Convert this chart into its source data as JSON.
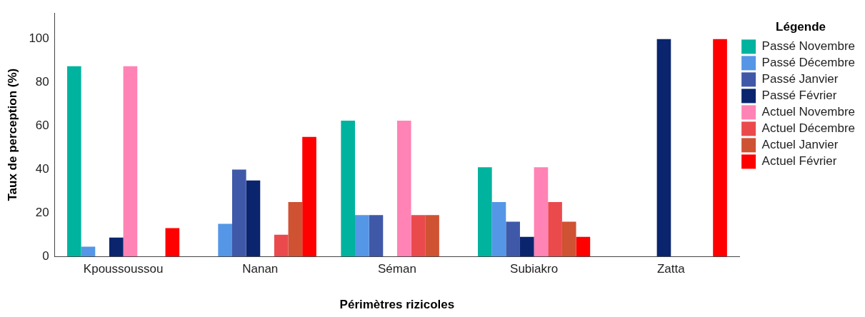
{
  "chart_data": {
    "type": "bar",
    "xlabel": "Périmètres rizicoles",
    "ylabel": "Taux de perception (%)",
    "legend_title": "Légende",
    "legend": "right",
    "grid": false,
    "categories": [
      "Kpoussoussou",
      "Nanan",
      "Séman",
      "Subiakro",
      "Zatta"
    ],
    "ylim": [
      0,
      112
    ],
    "yticks": [
      0,
      20,
      40,
      60,
      80,
      100
    ],
    "series": [
      {
        "name": "Passé Novembre",
        "color": "#00b39f",
        "values": [
          87.5,
          null,
          62.5,
          41,
          null
        ]
      },
      {
        "name": "Passé Décembre",
        "color": "#5596e6",
        "values": [
          4.5,
          15,
          19,
          25,
          null
        ]
      },
      {
        "name": "Passé Janvier",
        "color": "#4058a8",
        "values": [
          null,
          40,
          19,
          16,
          null
        ]
      },
      {
        "name": "Passé Février",
        "color": "#0a256e",
        "values": [
          8.7,
          35,
          null,
          9,
          100
        ]
      },
      {
        "name": "Actuel Novembre",
        "color": "#ff83b5",
        "values": [
          87.5,
          null,
          62.5,
          41,
          null
        ]
      },
      {
        "name": "Actuel Décembre",
        "color": "#eb4a4d",
        "values": [
          null,
          10,
          19,
          25,
          null
        ]
      },
      {
        "name": "Actuel Janvier",
        "color": "#cf5233",
        "values": [
          null,
          25,
          19,
          16,
          null
        ]
      },
      {
        "name": "Actuel Février",
        "color": "#ff0000",
        "values": [
          13,
          55,
          null,
          9,
          100
        ]
      }
    ]
  }
}
